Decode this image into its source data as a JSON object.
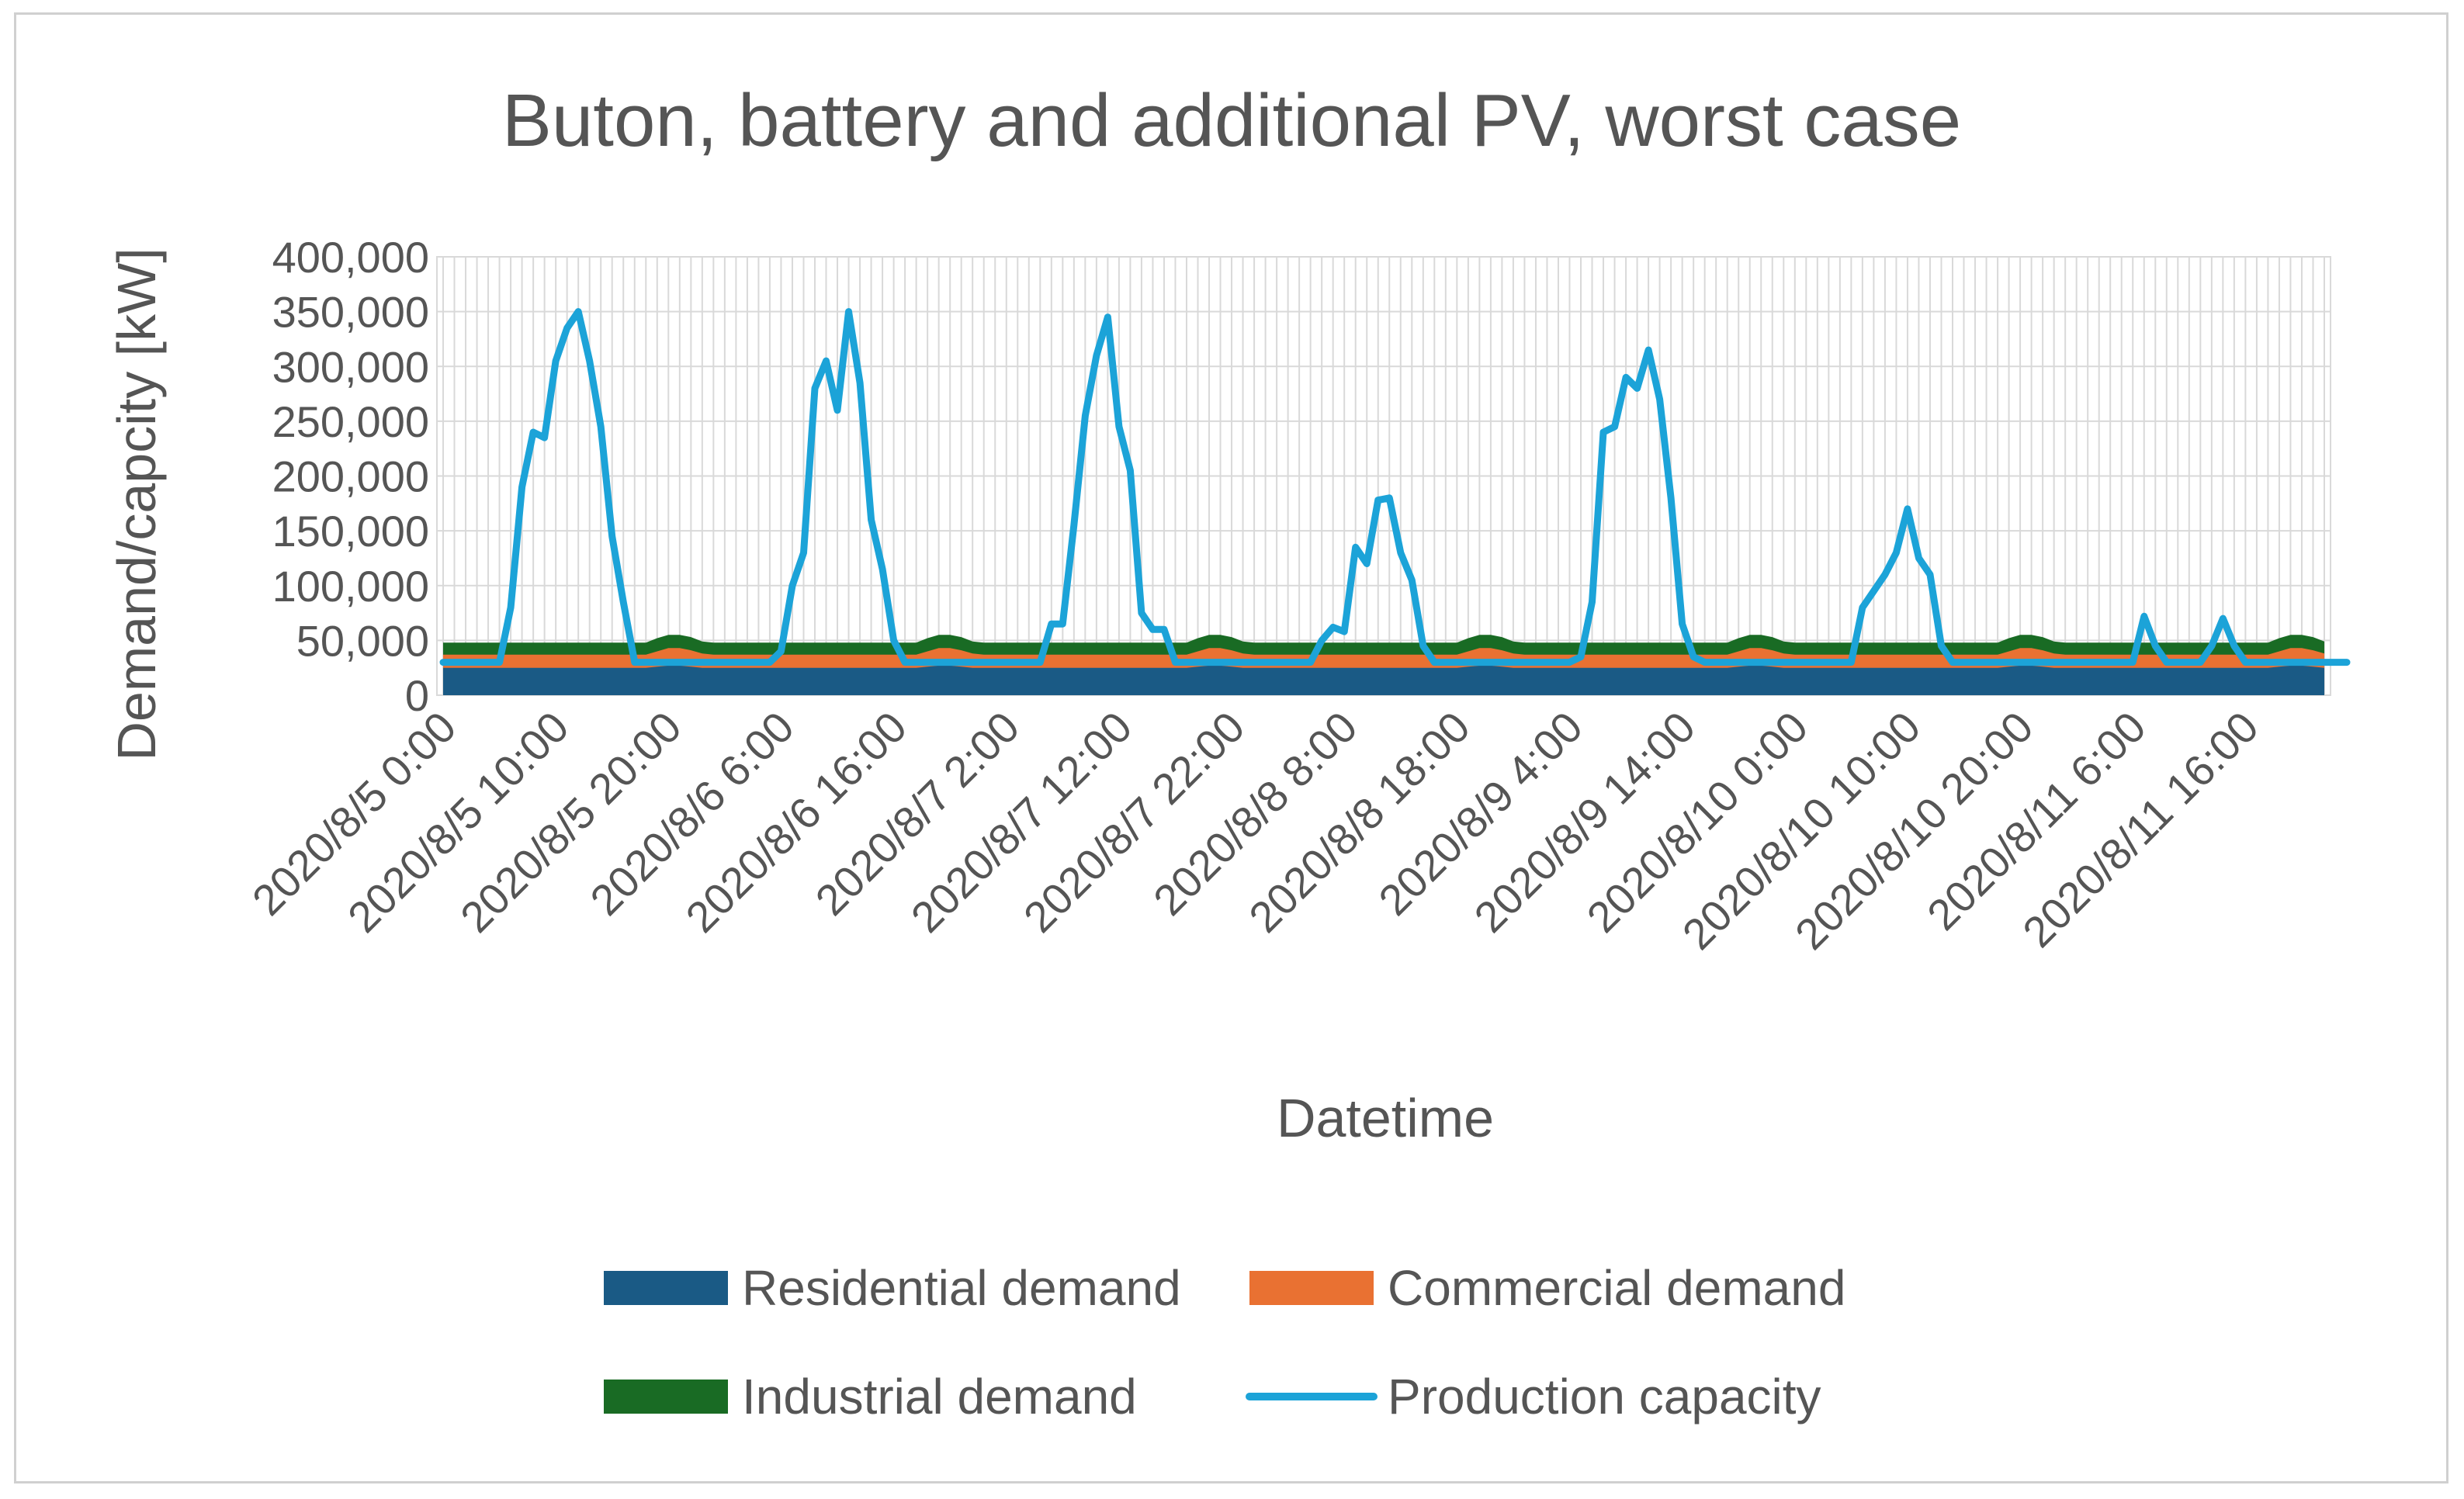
{
  "chart_data": {
    "type": "area",
    "title": "Buton, battery and additional PV, worst case",
    "xlabel": "Datetime",
    "ylabel": "Demand/capcity [kW]",
    "ylim": [
      0,
      400000
    ],
    "y_ticks": [
      "400,000",
      "350,000",
      "300,000",
      "250,000",
      "200,000",
      "150,000",
      "100,000",
      "50,000",
      "0"
    ],
    "x_tick_labels": [
      "2020/8/5 0:00",
      "2020/8/5 10:00",
      "2020/8/5 20:00",
      "2020/8/6 6:00",
      "2020/8/6 16:00",
      "2020/8/7 2:00",
      "2020/8/7 12:00",
      "2020/8/7 22:00",
      "2020/8/8 8:00",
      "2020/8/8 18:00",
      "2020/8/9 4:00",
      "2020/8/9 14:00",
      "2020/8/10 0:00",
      "2020/8/10 10:00",
      "2020/8/10 20:00",
      "2020/8/11 6:00",
      "2020/8/11 16:00"
    ],
    "x_start": "2020/8/5 0:00",
    "x_step_hours": 1,
    "grid": true,
    "legend_position": "bottom",
    "series": [
      {
        "name": "Residential demand",
        "kind": "stacked-area",
        "color": "#1a5a85",
        "values": [
          25000,
          25000,
          25000,
          25000,
          25000,
          25000,
          25000,
          25000,
          25000,
          25000,
          25000,
          25000,
          25000,
          25000,
          25000,
          25000,
          25000,
          25000,
          25000,
          26000,
          27000,
          27000,
          26000,
          25000,
          25000,
          25000,
          25000,
          25000,
          25000,
          25000,
          25000,
          25000,
          25000,
          25000,
          25000,
          25000,
          25000,
          25000,
          25000,
          25000,
          25000,
          25000,
          25000,
          26000,
          27000,
          27000,
          26000,
          25000,
          25000,
          25000,
          25000,
          25000,
          25000,
          25000,
          25000,
          25000,
          25000,
          25000,
          25000,
          25000,
          25000,
          25000,
          25000,
          25000,
          25000,
          25000,
          25000,
          26000,
          27000,
          27000,
          26000,
          25000,
          25000,
          25000,
          25000,
          25000,
          25000,
          25000,
          25000,
          25000,
          25000,
          25000,
          25000,
          25000,
          25000,
          25000,
          25000,
          25000,
          25000,
          25000,
          25000,
          26000,
          27000,
          27000,
          26000,
          25000,
          25000,
          25000,
          25000,
          25000,
          25000,
          25000,
          25000,
          25000,
          25000,
          25000,
          25000,
          25000,
          25000,
          25000,
          25000,
          25000,
          25000,
          25000,
          25000,
          26000,
          27000,
          27000,
          26000,
          25000,
          25000,
          25000,
          25000,
          25000,
          25000,
          25000,
          25000,
          25000,
          25000,
          25000,
          25000,
          25000,
          25000,
          25000,
          25000,
          25000,
          25000,
          25000,
          25000,
          26000,
          27000,
          27000,
          26000,
          25000,
          25000,
          25000,
          25000,
          25000,
          25000,
          25000,
          25000,
          25000,
          25000,
          25000,
          25000,
          25000,
          25000,
          25000,
          25000,
          25000,
          25000,
          25000,
          25000,
          26000,
          27000,
          27000,
          26000,
          25000
        ]
      },
      {
        "name": "Commercial demand",
        "kind": "stacked-area",
        "color": "#e97132",
        "values": [
          12000,
          12000,
          12000,
          12000,
          12000,
          12000,
          12000,
          12000,
          12000,
          12000,
          12000,
          12000,
          12000,
          12000,
          12000,
          12000,
          12000,
          12000,
          12000,
          14000,
          16000,
          16000,
          15000,
          13000,
          12000,
          12000,
          12000,
          12000,
          12000,
          12000,
          12000,
          12000,
          12000,
          12000,
          12000,
          12000,
          12000,
          12000,
          12000,
          12000,
          12000,
          12000,
          12000,
          14000,
          16000,
          16000,
          15000,
          13000,
          12000,
          12000,
          12000,
          12000,
          12000,
          12000,
          12000,
          12000,
          12000,
          12000,
          12000,
          12000,
          12000,
          12000,
          12000,
          12000,
          12000,
          12000,
          12000,
          14000,
          16000,
          16000,
          15000,
          13000,
          12000,
          12000,
          12000,
          12000,
          12000,
          12000,
          12000,
          12000,
          12000,
          12000,
          12000,
          12000,
          12000,
          12000,
          12000,
          12000,
          12000,
          12000,
          12000,
          14000,
          16000,
          16000,
          15000,
          13000,
          12000,
          12000,
          12000,
          12000,
          12000,
          12000,
          12000,
          12000,
          12000,
          12000,
          12000,
          12000,
          12000,
          12000,
          12000,
          12000,
          12000,
          12000,
          12000,
          14000,
          16000,
          16000,
          15000,
          13000,
          12000,
          12000,
          12000,
          12000,
          12000,
          12000,
          12000,
          12000,
          12000,
          12000,
          12000,
          12000,
          12000,
          12000,
          12000,
          12000,
          12000,
          12000,
          12000,
          14000,
          16000,
          16000,
          15000,
          13000,
          12000,
          12000,
          12000,
          12000,
          12000,
          12000,
          12000,
          12000,
          12000,
          12000,
          12000,
          12000,
          12000,
          12000,
          12000,
          12000,
          12000,
          12000,
          12000,
          14000,
          16000,
          16000,
          15000,
          13000
        ]
      },
      {
        "name": "Industrial demand",
        "kind": "stacked-area",
        "color": "#196b24",
        "values": [
          11000,
          11000,
          11000,
          11000,
          11000,
          11000,
          11000,
          11000,
          11000,
          11000,
          11000,
          11000,
          11000,
          11000,
          11000,
          11000,
          11000,
          11000,
          11000,
          12000,
          12000,
          12000,
          12000,
          11000,
          11000,
          11000,
          11000,
          11000,
          11000,
          11000,
          11000,
          11000,
          11000,
          11000,
          11000,
          11000,
          11000,
          11000,
          11000,
          11000,
          11000,
          11000,
          11000,
          12000,
          12000,
          12000,
          12000,
          11000,
          11000,
          11000,
          11000,
          11000,
          11000,
          11000,
          11000,
          11000,
          11000,
          11000,
          11000,
          11000,
          11000,
          11000,
          11000,
          11000,
          11000,
          11000,
          11000,
          12000,
          12000,
          12000,
          12000,
          11000,
          11000,
          11000,
          11000,
          11000,
          11000,
          11000,
          11000,
          11000,
          11000,
          11000,
          11000,
          11000,
          11000,
          11000,
          11000,
          11000,
          11000,
          11000,
          11000,
          12000,
          12000,
          12000,
          12000,
          11000,
          11000,
          11000,
          11000,
          11000,
          11000,
          11000,
          11000,
          11000,
          11000,
          11000,
          11000,
          11000,
          11000,
          11000,
          11000,
          11000,
          11000,
          11000,
          11000,
          12000,
          12000,
          12000,
          12000,
          11000,
          11000,
          11000,
          11000,
          11000,
          11000,
          11000,
          11000,
          11000,
          11000,
          11000,
          11000,
          11000,
          11000,
          11000,
          11000,
          11000,
          11000,
          11000,
          11000,
          12000,
          12000,
          12000,
          12000,
          11000,
          11000,
          11000,
          11000,
          11000,
          11000,
          11000,
          11000,
          11000,
          11000,
          11000,
          11000,
          11000,
          11000,
          11000,
          11000,
          11000,
          11000,
          11000,
          11000,
          12000,
          12000,
          12000,
          12000,
          11000
        ]
      },
      {
        "name": "Production capacity",
        "kind": "line",
        "color": "#1ca3d8",
        "values": [
          30000,
          30000,
          30000,
          30000,
          30000,
          30000,
          80000,
          190000,
          240000,
          235000,
          305000,
          335000,
          350000,
          305000,
          245000,
          145000,
          85000,
          30000,
          30000,
          30000,
          30000,
          30000,
          30000,
          30000,
          30000,
          30000,
          30000,
          30000,
          30000,
          30000,
          40000,
          100000,
          130000,
          280000,
          305000,
          260000,
          350000,
          285000,
          160000,
          115000,
          50000,
          30000,
          30000,
          30000,
          30000,
          30000,
          30000,
          30000,
          30000,
          30000,
          30000,
          30000,
          30000,
          30000,
          65000,
          65000,
          155000,
          255000,
          310000,
          345000,
          245000,
          205000,
          75000,
          60000,
          60000,
          30000,
          30000,
          30000,
          30000,
          30000,
          30000,
          30000,
          30000,
          30000,
          30000,
          30000,
          30000,
          30000,
          50000,
          62000,
          58000,
          135000,
          120000,
          178000,
          180000,
          130000,
          105000,
          45000,
          30000,
          30000,
          30000,
          30000,
          30000,
          30000,
          30000,
          30000,
          30000,
          30000,
          30000,
          30000,
          30000,
          35000,
          85000,
          240000,
          245000,
          290000,
          280000,
          315000,
          270000,
          180000,
          65000,
          35000,
          30000,
          30000,
          30000,
          30000,
          30000,
          30000,
          30000,
          30000,
          30000,
          30000,
          30000,
          30000,
          30000,
          30000,
          80000,
          95000,
          110000,
          130000,
          170000,
          125000,
          110000,
          45000,
          30000,
          30000,
          30000,
          30000,
          30000,
          30000,
          30000,
          30000,
          30000,
          30000,
          30000,
          30000,
          30000,
          30000,
          30000,
          30000,
          30000,
          72000,
          45000,
          30000,
          30000,
          30000,
          30000,
          45000,
          70000,
          45000,
          30000,
          30000,
          30000,
          30000,
          30000,
          30000,
          30000,
          30000,
          30000,
          30000
        ]
      }
    ]
  }
}
